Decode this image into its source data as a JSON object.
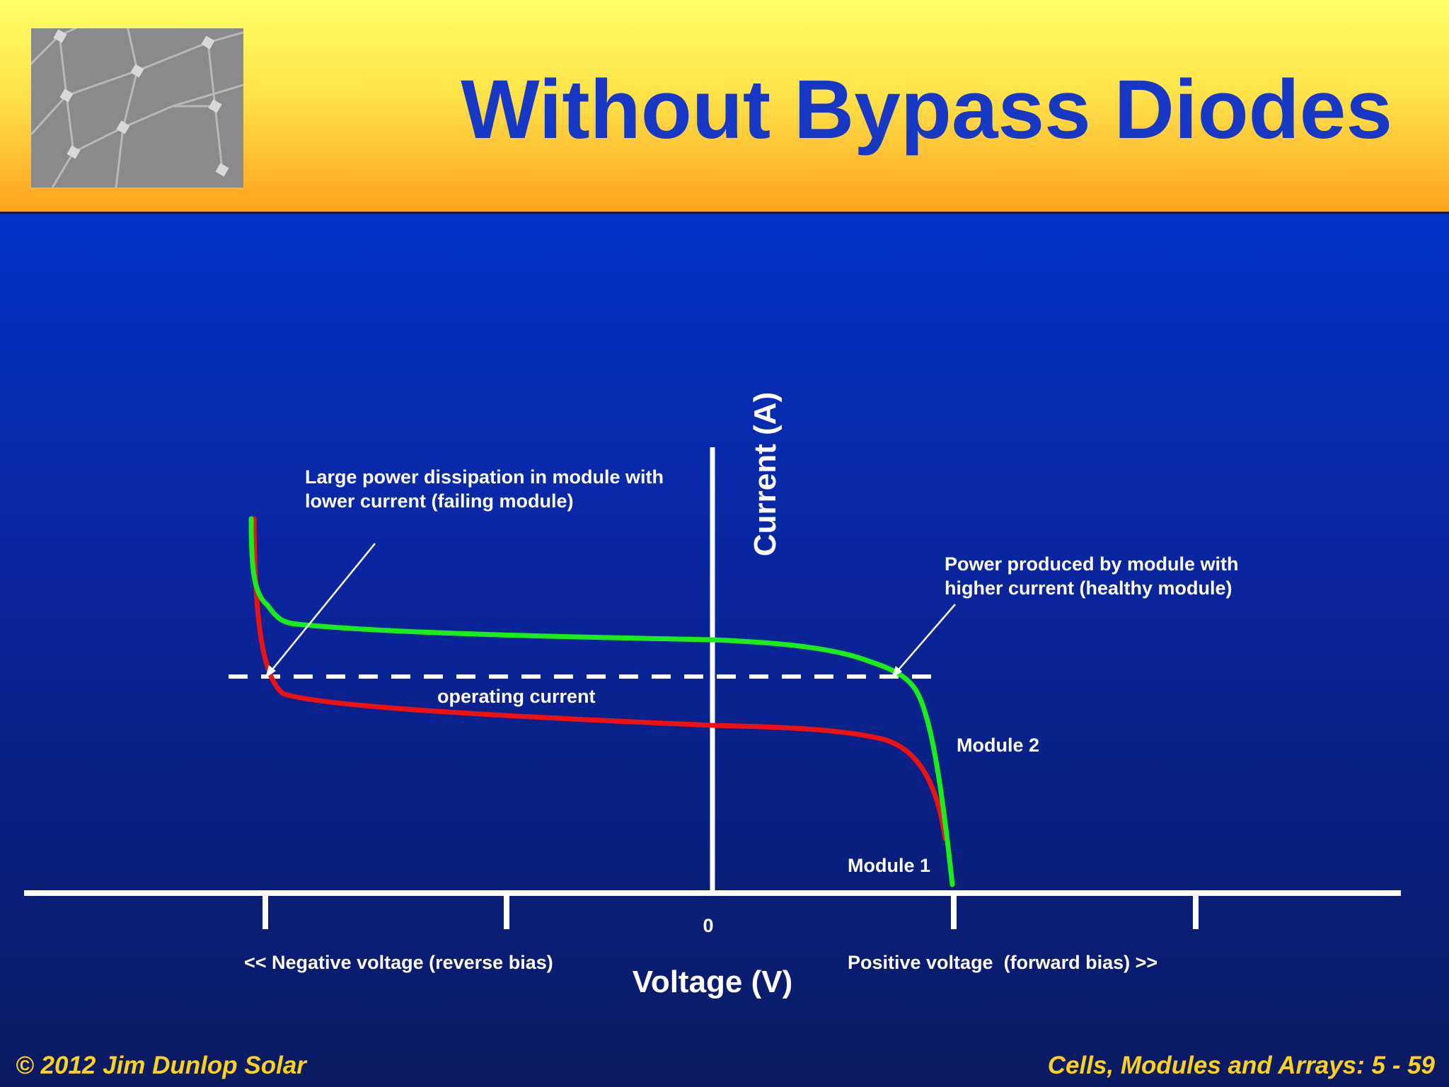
{
  "header": {
    "title": "Without Bypass Diodes"
  },
  "diagram": {
    "y_axis_label": "Current (A)",
    "x_axis_label": "Voltage (V)",
    "origin_label": "0",
    "negative_side_label": "<< Negative voltage (reverse bias)",
    "positive_side_label": "Positive voltage  (forward bias) >>",
    "annotation_failing_line1": "Large power dissipation in module with",
    "annotation_failing_line2": "lower current (failing module)",
    "annotation_healthy_line1": "Power produced by module with",
    "annotation_healthy_line2": "higher current (healthy module)",
    "operating_current_label": "operating current",
    "module2_label": "Module 2",
    "module1_label": "Module 1",
    "colors": {
      "module2": "#19ee19",
      "module1": "#ee1111",
      "axis": "#ffffff"
    }
  },
  "footer": {
    "left": "© 2012 Jim Dunlop Solar",
    "right": "Cells, Modules and Arrays: 5 - 59"
  }
}
